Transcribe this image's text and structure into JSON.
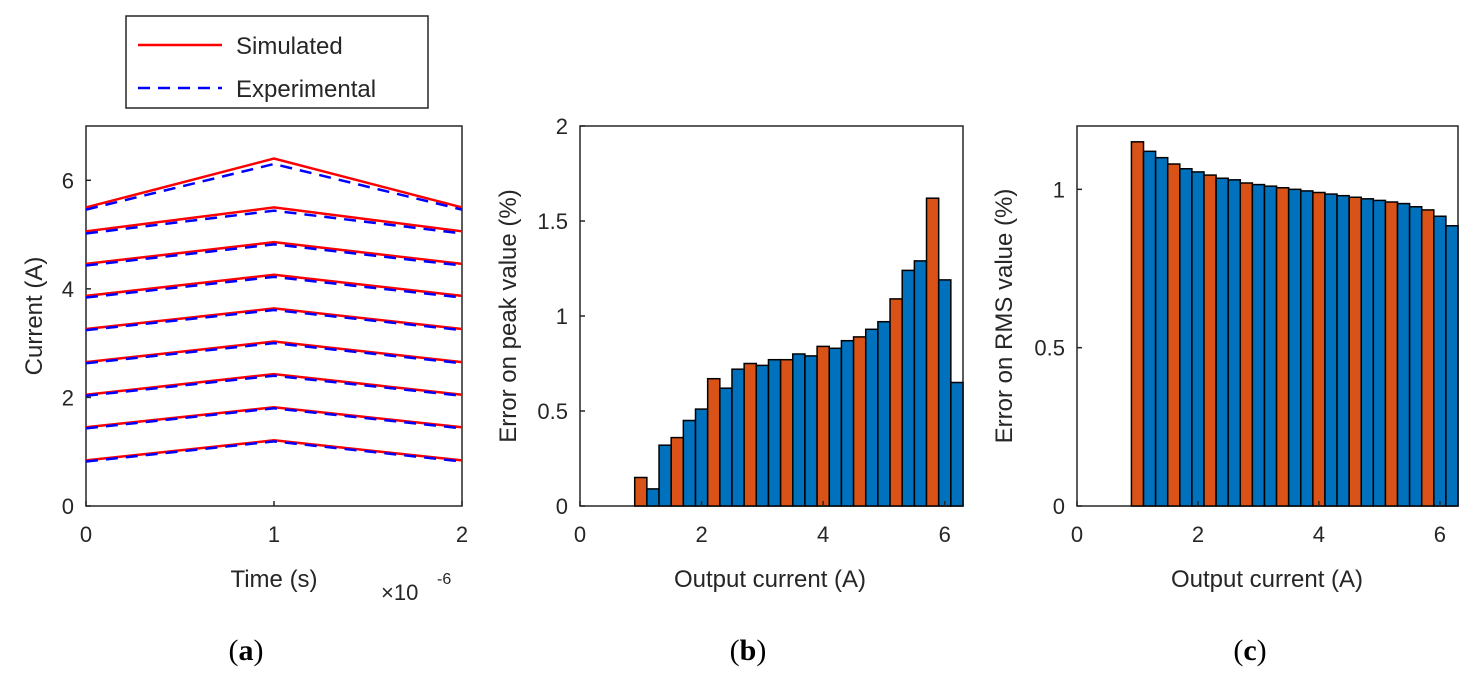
{
  "chart_data": [
    {
      "type": "line",
      "caption_letter": "a",
      "xlabel": "Time (s)",
      "ylabel": "Current (A)",
      "x_exponent_base": "×10",
      "x_exponent_power": "-6",
      "xlim": [
        0,
        2
      ],
      "ylim": [
        0,
        7
      ],
      "xticks": [
        0,
        1,
        2
      ],
      "xtick_labels": [
        "0",
        "1",
        "2"
      ],
      "yticks": [
        0,
        2,
        4,
        6
      ],
      "ytick_labels": [
        "0",
        "2",
        "4",
        "6"
      ],
      "legend": {
        "position": "top-left outside",
        "entries": [
          {
            "label": "Simulated",
            "color": "#ff0000",
            "style": "solid"
          },
          {
            "label": "Experimental",
            "color": "#0000ff",
            "style": "dashed"
          }
        ]
      },
      "x": [
        0,
        1,
        2
      ],
      "series": [
        {
          "name": "Simulated",
          "waveforms": [
            [
              0.84,
              1.21,
              0.84
            ],
            [
              1.45,
              1.82,
              1.45
            ],
            [
              2.05,
              2.43,
              2.05
            ],
            [
              2.65,
              3.03,
              2.65
            ],
            [
              3.26,
              3.64,
              3.26
            ],
            [
              3.87,
              4.26,
              3.87
            ],
            [
              4.46,
              4.86,
              4.46
            ],
            [
              5.06,
              5.5,
              5.06
            ],
            [
              5.5,
              6.4,
              5.5
            ]
          ]
        },
        {
          "name": "Experimental",
          "waveforms": [
            [
              0.82,
              1.19,
              0.82
            ],
            [
              1.43,
              1.8,
              1.43
            ],
            [
              2.03,
              2.4,
              2.03
            ],
            [
              2.63,
              3.0,
              2.63
            ],
            [
              3.24,
              3.61,
              3.24
            ],
            [
              3.84,
              4.22,
              3.84
            ],
            [
              4.43,
              4.82,
              4.43
            ],
            [
              5.02,
              5.44,
              5.02
            ],
            [
              5.46,
              6.3,
              5.46
            ]
          ]
        }
      ]
    },
    {
      "type": "bar",
      "caption_letter": "b",
      "xlabel": "Output current (A)",
      "ylabel": "Error on peak value (%)",
      "xlim": [
        0,
        6.3
      ],
      "ylim": [
        0,
        2
      ],
      "xticks": [
        0,
        2,
        4,
        6
      ],
      "xtick_labels": [
        "0",
        "2",
        "4",
        "6"
      ],
      "yticks": [
        0,
        0.5,
        1,
        1.5,
        2
      ],
      "ytick_labels": [
        "0",
        "0.5",
        "1",
        "1.5",
        "2"
      ],
      "bar_width": 0.2,
      "colors": {
        "blue": "#0072bd",
        "orange": "#d95319"
      },
      "x": [
        1.0,
        1.2,
        1.4,
        1.6,
        1.8,
        2.0,
        2.2,
        2.4,
        2.6,
        2.8,
        3.0,
        3.2,
        3.4,
        3.6,
        3.8,
        4.0,
        4.2,
        4.4,
        4.6,
        4.8,
        5.0,
        5.2,
        5.4,
        5.6,
        5.8,
        6.0,
        6.2
      ],
      "values": [
        0.15,
        0.09,
        0.32,
        0.36,
        0.45,
        0.51,
        0.67,
        0.62,
        0.72,
        0.75,
        0.74,
        0.77,
        0.77,
        0.8,
        0.79,
        0.84,
        0.83,
        0.87,
        0.89,
        0.93,
        0.97,
        1.09,
        1.24,
        1.29,
        1.62,
        1.19,
        0.65
      ],
      "bar_colors": [
        "orange",
        "blue",
        "blue",
        "orange",
        "blue",
        "blue",
        "orange",
        "blue",
        "blue",
        "orange",
        "blue",
        "blue",
        "orange",
        "blue",
        "blue",
        "orange",
        "blue",
        "blue",
        "orange",
        "blue",
        "blue",
        "orange",
        "blue",
        "blue",
        "orange",
        "blue",
        "blue"
      ]
    },
    {
      "type": "bar",
      "caption_letter": "c",
      "xlabel": "Output current (A)",
      "ylabel": "Error on RMS value (%)",
      "xlim": [
        0,
        6.3
      ],
      "ylim": [
        0,
        1.2
      ],
      "xticks": [
        0,
        2,
        4,
        6
      ],
      "xtick_labels": [
        "0",
        "2",
        "4",
        "6"
      ],
      "yticks": [
        0,
        0.5,
        1
      ],
      "ytick_labels": [
        "0",
        "0.5",
        "1"
      ],
      "bar_width": 0.2,
      "colors": {
        "blue": "#0072bd",
        "orange": "#d95319"
      },
      "x": [
        1.0,
        1.2,
        1.4,
        1.6,
        1.8,
        2.0,
        2.2,
        2.4,
        2.6,
        2.8,
        3.0,
        3.2,
        3.4,
        3.6,
        3.8,
        4.0,
        4.2,
        4.4,
        4.6,
        4.8,
        5.0,
        5.2,
        5.4,
        5.6,
        5.8,
        6.0,
        6.2
      ],
      "values": [
        1.15,
        1.12,
        1.1,
        1.08,
        1.065,
        1.055,
        1.045,
        1.035,
        1.03,
        1.02,
        1.015,
        1.01,
        1.005,
        1.0,
        0.995,
        0.99,
        0.985,
        0.98,
        0.975,
        0.97,
        0.965,
        0.96,
        0.955,
        0.945,
        0.935,
        0.915,
        0.885
      ],
      "bar_colors": [
        "orange",
        "blue",
        "blue",
        "orange",
        "blue",
        "blue",
        "orange",
        "blue",
        "blue",
        "orange",
        "blue",
        "blue",
        "orange",
        "blue",
        "blue",
        "orange",
        "blue",
        "blue",
        "orange",
        "blue",
        "blue",
        "orange",
        "blue",
        "blue",
        "orange",
        "blue",
        "blue"
      ]
    }
  ]
}
